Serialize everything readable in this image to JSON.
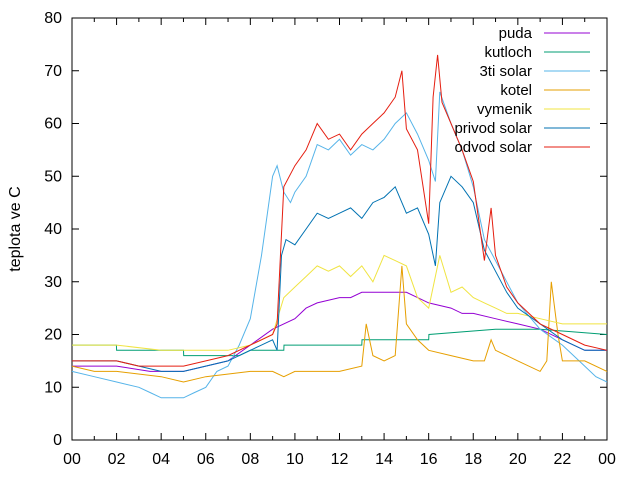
{
  "chart_data": {
    "type": "line",
    "title": "",
    "xlabel": "",
    "ylabel": "teplota ve C",
    "xlim": [
      0,
      24
    ],
    "ylim": [
      0,
      80
    ],
    "x_ticks": [
      "00",
      "02",
      "04",
      "06",
      "08",
      "10",
      "12",
      "14",
      "16",
      "18",
      "20",
      "22",
      "00"
    ],
    "y_ticks": [
      0,
      10,
      20,
      30,
      40,
      50,
      60,
      70,
      80
    ],
    "grid": false,
    "legend_position": "top-right",
    "series": [
      {
        "name": "puda",
        "color": "#9400d3",
        "x": [
          0,
          2,
          3.5,
          5,
          6,
          7,
          8,
          9,
          10,
          10.5,
          11,
          12,
          12.5,
          13,
          13.5,
          14,
          14.5,
          15,
          15.5,
          16,
          17,
          17.5,
          18,
          19,
          20,
          21,
          22,
          23,
          24
        ],
        "y": [
          14,
          14,
          13,
          13,
          14,
          15,
          18,
          21,
          23,
          25,
          26,
          27,
          27,
          28,
          28,
          28,
          28,
          28,
          27,
          26,
          25,
          24,
          24,
          23,
          22,
          21,
          19,
          17,
          17
        ]
      },
      {
        "name": "kutloch",
        "color": "#009e73",
        "x": [
          0,
          1.99,
          2,
          5,
          5.01,
          7.5,
          8,
          9.5,
          9.51,
          10,
          13,
          13.01,
          16,
          16.01,
          19,
          21,
          24
        ],
        "y": [
          18,
          18,
          17,
          17,
          16,
          16,
          17,
          17,
          18,
          18,
          18,
          19,
          19,
          20,
          21,
          21,
          20
        ]
      },
      {
        "name": "3ti solar",
        "color": "#56b4e9",
        "x": [
          0,
          1,
          2,
          3,
          3.5,
          4,
          5,
          5.5,
          6,
          6.5,
          7,
          7.5,
          8,
          8.5,
          9,
          9.2,
          9.5,
          9.8,
          10,
          10.5,
          11,
          11.5,
          12,
          12.5,
          13,
          13.5,
          14,
          14.5,
          15,
          15.5,
          16,
          16.3,
          16.5,
          17,
          17.5,
          18,
          18.5,
          19,
          19.5,
          20,
          21,
          22,
          23,
          23.5,
          24
        ],
        "y": [
          13,
          12,
          11,
          10,
          9,
          8,
          8,
          9,
          10,
          13,
          14,
          18,
          23,
          35,
          50,
          52,
          47,
          45,
          47,
          50,
          56,
          55,
          57,
          54,
          56,
          55,
          57,
          60,
          62,
          58,
          53,
          49,
          66,
          60,
          55,
          48,
          38,
          34,
          30,
          26,
          21,
          18,
          14,
          12,
          11
        ]
      },
      {
        "name": "kotel",
        "color": "#e69f00",
        "x": [
          0,
          1,
          2,
          4,
          5,
          6,
          8,
          9,
          9.5,
          10,
          11,
          12,
          13,
          13.2,
          13.5,
          14,
          14.5,
          14.8,
          15,
          15.5,
          16,
          17,
          18,
          18.5,
          18.8,
          19,
          20,
          21,
          21.3,
          21.5,
          21.8,
          22,
          23,
          24
        ],
        "y": [
          14,
          13,
          13,
          12,
          11,
          12,
          13,
          13,
          12,
          13,
          13,
          13,
          14,
          22,
          16,
          15,
          16,
          33,
          22,
          19,
          17,
          16,
          15,
          15,
          19,
          17,
          15,
          13,
          15,
          30,
          20,
          15,
          15,
          13
        ]
      },
      {
        "name": "vymenik",
        "color": "#f0e442",
        "x": [
          0,
          2,
          4,
          6,
          7,
          8,
          9,
          9.5,
          10,
          10.5,
          11,
          11.5,
          12,
          12.5,
          13,
          13.5,
          14,
          14.5,
          15,
          15.5,
          16,
          16.5,
          17,
          17.5,
          18,
          18.5,
          19,
          19.5,
          20,
          21,
          22,
          23,
          24
        ],
        "y": [
          18,
          18,
          17,
          17,
          17,
          18,
          20,
          27,
          29,
          31,
          33,
          32,
          33,
          31,
          33,
          30,
          35,
          34,
          33,
          27,
          25,
          35,
          28,
          29,
          27,
          26,
          25,
          24,
          24,
          23,
          22,
          22,
          22
        ]
      },
      {
        "name": "privod solar",
        "color": "#0072b2",
        "x": [
          0,
          2,
          3,
          4,
          5,
          6,
          7,
          8,
          8.5,
          9,
          9.2,
          9.4,
          9.6,
          10,
          10.5,
          11,
          11.5,
          12,
          12.5,
          13,
          13.5,
          14,
          14.5,
          15,
          15.5,
          16,
          16.3,
          16.5,
          17,
          17.5,
          18,
          18.5,
          19,
          19.5,
          20,
          21,
          22,
          23,
          24
        ],
        "y": [
          15,
          15,
          14,
          13,
          13,
          14,
          15,
          17,
          18,
          19,
          17,
          35,
          38,
          37,
          40,
          43,
          42,
          43,
          44,
          42,
          45,
          46,
          48,
          43,
          44,
          39,
          33,
          45,
          50,
          48,
          45,
          36,
          32,
          28,
          25,
          22,
          19,
          17,
          17
        ]
      },
      {
        "name": "odvod solar",
        "color": "#e51e10",
        "x": [
          0,
          2,
          3,
          4,
          5,
          6,
          7,
          8,
          8.5,
          9,
          9.2,
          9.5,
          10,
          10.5,
          11,
          11.5,
          12,
          12.5,
          13,
          13.5,
          14,
          14.5,
          14.8,
          15,
          15.5,
          16,
          16.2,
          16.4,
          16.6,
          17,
          17.5,
          18,
          18.5,
          18.8,
          19,
          19.5,
          20,
          21,
          22,
          23,
          24
        ],
        "y": [
          15,
          15,
          14,
          14,
          14,
          15,
          16,
          18,
          19,
          20,
          22,
          48,
          52,
          55,
          60,
          57,
          58,
          55,
          58,
          60,
          62,
          65,
          70,
          59,
          55,
          41,
          65,
          73,
          64,
          60,
          55,
          49,
          34,
          44,
          35,
          29,
          26,
          22,
          20,
          18,
          17
        ]
      }
    ]
  }
}
